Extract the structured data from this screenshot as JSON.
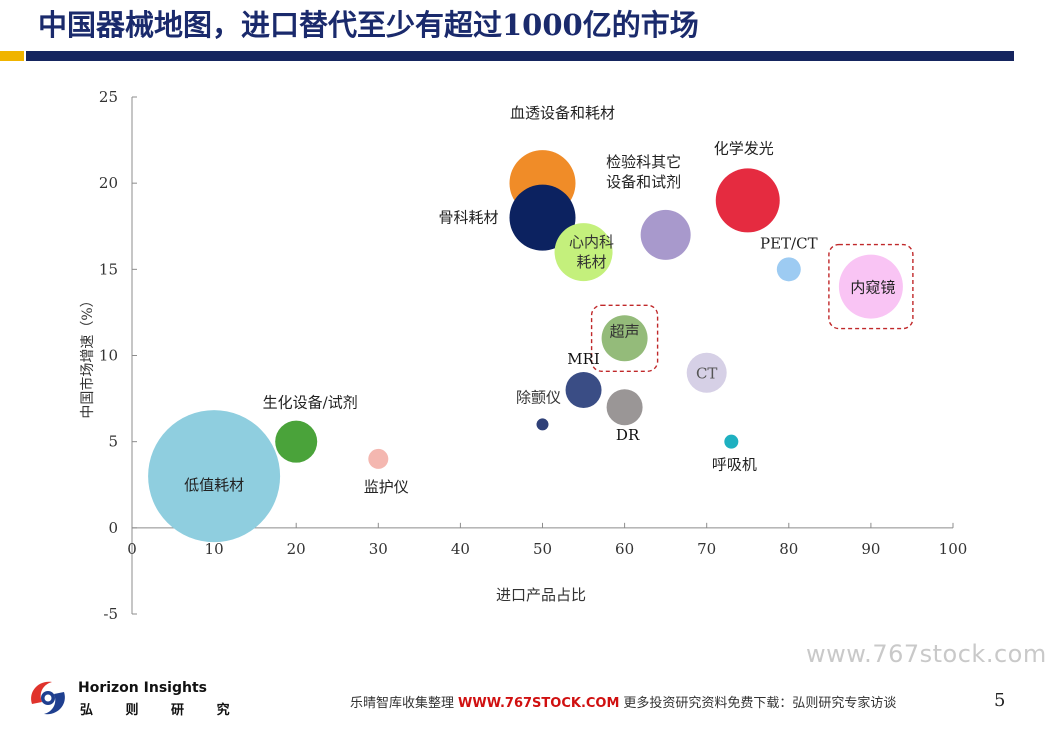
{
  "header": {
    "title": "中国器械地图，进口替代至少有超过1000亿的市场"
  },
  "chart_data": {
    "type": "scatter",
    "xlabel": "进口产品占比",
    "ylabel": "中国市场增速（%）",
    "xlim": [
      0,
      100
    ],
    "ylim": [
      -5,
      25
    ],
    "x_ticks": [
      0,
      10,
      20,
      30,
      40,
      50,
      60,
      70,
      80,
      90,
      100
    ],
    "y_ticks": [
      -5,
      0,
      5,
      10,
      15,
      20,
      25
    ],
    "grid": false,
    "points": [
      {
        "label": "低值耗材",
        "x": 10,
        "y": 3,
        "size": 66,
        "color": "#8fcedf"
      },
      {
        "label": "生化设备/试剂",
        "x": 20,
        "y": 5,
        "size": 21,
        "color": "#4aa33a"
      },
      {
        "label": "监护仪",
        "x": 30,
        "y": 4,
        "size": 10,
        "color": "#f4b7b0"
      },
      {
        "label": "血透设备和耗材",
        "x": 50,
        "y": 20,
        "size": 33,
        "color": "#f08c28"
      },
      {
        "label": "骨科耗材",
        "x": 50,
        "y": 18,
        "size": 33,
        "color": "#0c2260"
      },
      {
        "label": "心内科耗材",
        "x": 55,
        "y": 16,
        "size": 29,
        "color": "#c4f07c"
      },
      {
        "label": "超声",
        "x": 60,
        "y": 11,
        "size": 23,
        "color": "#94bb7a"
      },
      {
        "label": "MRI",
        "x": 55,
        "y": 8,
        "size": 18,
        "color": "#3a4d85"
      },
      {
        "label": "除颤仪",
        "x": 50,
        "y": 6,
        "size": 6,
        "color": "#2f4078"
      },
      {
        "label": "DR",
        "x": 60,
        "y": 7,
        "size": 18,
        "color": "#9a9696"
      },
      {
        "label": "检验科其它设备和试剂",
        "x": 65,
        "y": 17,
        "size": 25,
        "color": "#a899cc"
      },
      {
        "label": "CT",
        "x": 70,
        "y": 9,
        "size": 20,
        "color": "#d6d0e6"
      },
      {
        "label": "化学发光",
        "x": 75,
        "y": 19,
        "size": 32,
        "color": "#e52b40"
      },
      {
        "label": "PET/CT",
        "x": 80,
        "y": 15,
        "size": 12,
        "color": "#9dcbf2"
      },
      {
        "label": "呼吸机",
        "x": 73,
        "y": 5,
        "size": 7,
        "color": "#1eb0c0"
      },
      {
        "label": "内窥镜",
        "x": 90,
        "y": 14,
        "size": 32,
        "color": "#f9c4f4"
      }
    ],
    "highlighted": [
      "超声",
      "内窥镜"
    ]
  },
  "footer": {
    "watermark": "www.767stock.com",
    "brand_en": "Horizon Insights",
    "brand_cn": "弘 则 研 究",
    "line_prefix": "乐晴智库收集整理",
    "line_url": "WWW.767STOCK.COM",
    "line_suffix": "更多投资研究资料免费下载：弘则研究专家访谈",
    "page_number": "5"
  }
}
